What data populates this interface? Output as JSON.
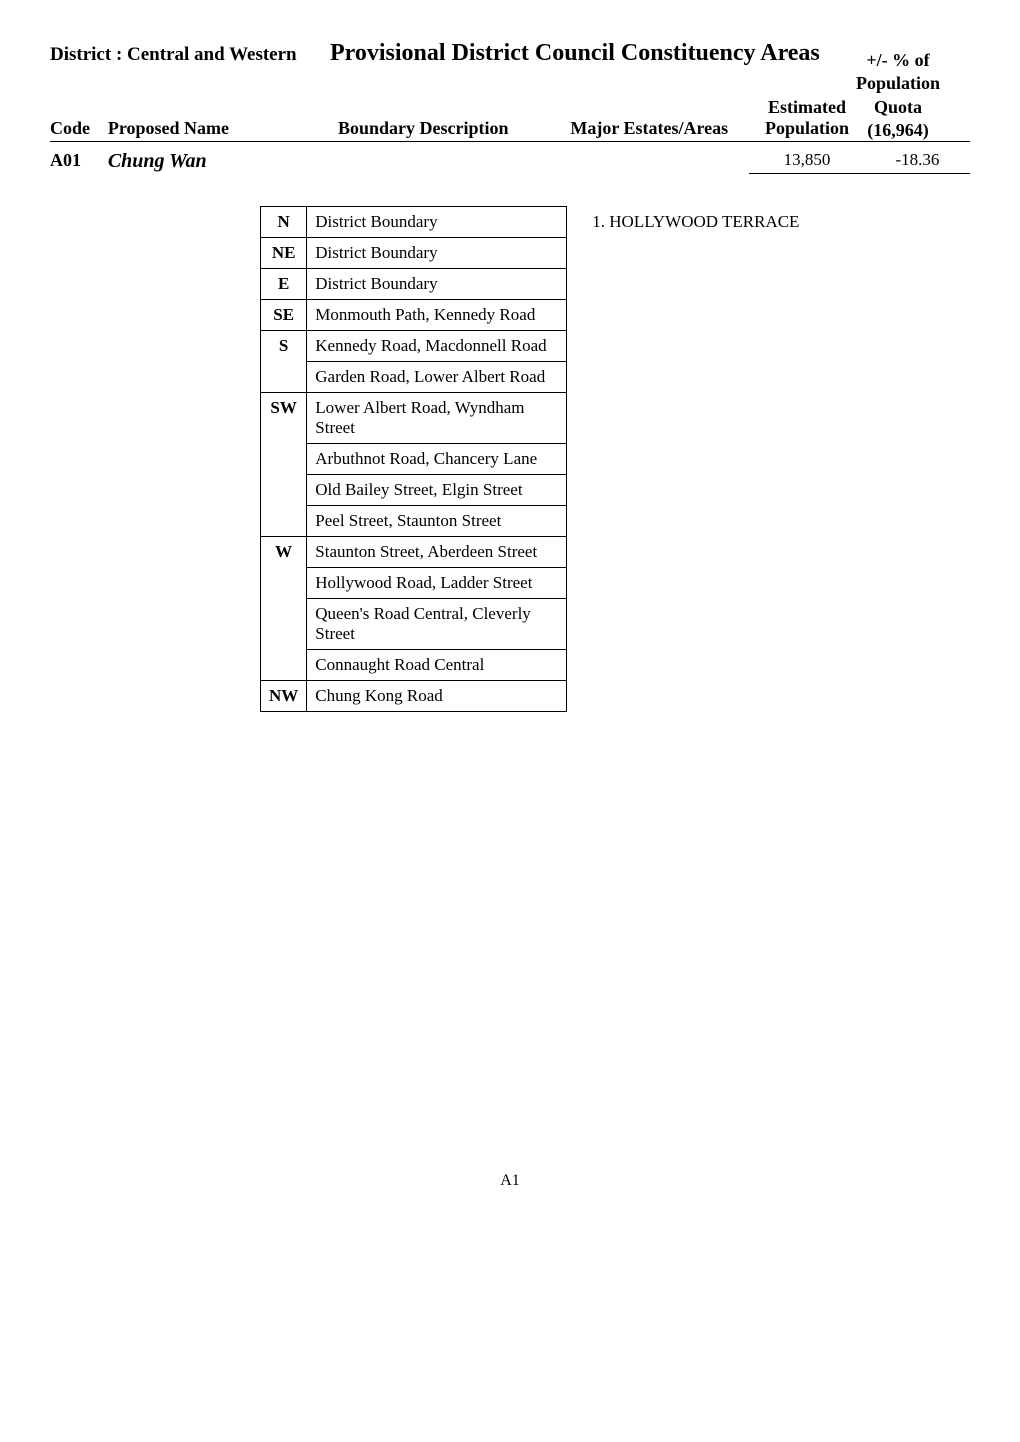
{
  "header": {
    "district_label": "District : Central and Western",
    "page_title": "Provisional District Council Constituency Areas",
    "pct_line1": "+/- % of",
    "pct_line2": "Population",
    "pct_line3": "Quota",
    "estimated_line1": "Estimated",
    "estimated_line2": "Population",
    "quota_val": "(16,964)",
    "col_code": "Code",
    "col_name": "Proposed Name",
    "col_boundary": "Boundary Description",
    "col_estates": "Major Estates/Areas"
  },
  "record": {
    "code": "A01",
    "name": "Chung Wan",
    "population": "13,850",
    "deviation": "-18.36"
  },
  "boundary": [
    {
      "dir": "N",
      "lines": [
        "District Boundary"
      ]
    },
    {
      "dir": "NE",
      "lines": [
        "District Boundary"
      ]
    },
    {
      "dir": "E",
      "lines": [
        "District Boundary"
      ]
    },
    {
      "dir": "SE",
      "lines": [
        "Monmouth Path, Kennedy Road"
      ]
    },
    {
      "dir": "S",
      "lines": [
        "Kennedy Road, Macdonnell Road",
        "Garden Road, Lower Albert Road"
      ]
    },
    {
      "dir": "SW",
      "lines": [
        "Lower Albert Road, Wyndham Street",
        "Arbuthnot Road, Chancery Lane",
        "Old Bailey Street, Elgin Street",
        "Peel Street, Staunton Street"
      ]
    },
    {
      "dir": "W",
      "lines": [
        "Staunton Street, Aberdeen Street",
        "Hollywood Road, Ladder Street",
        "Queen's Road Central, Cleverly Street",
        "Connaught Road Central"
      ]
    },
    {
      "dir": "NW",
      "lines": [
        "Chung Kong Road"
      ]
    }
  ],
  "estates": [
    "1.  HOLLYWOOD TERRACE"
  ],
  "page_num": "A1"
}
